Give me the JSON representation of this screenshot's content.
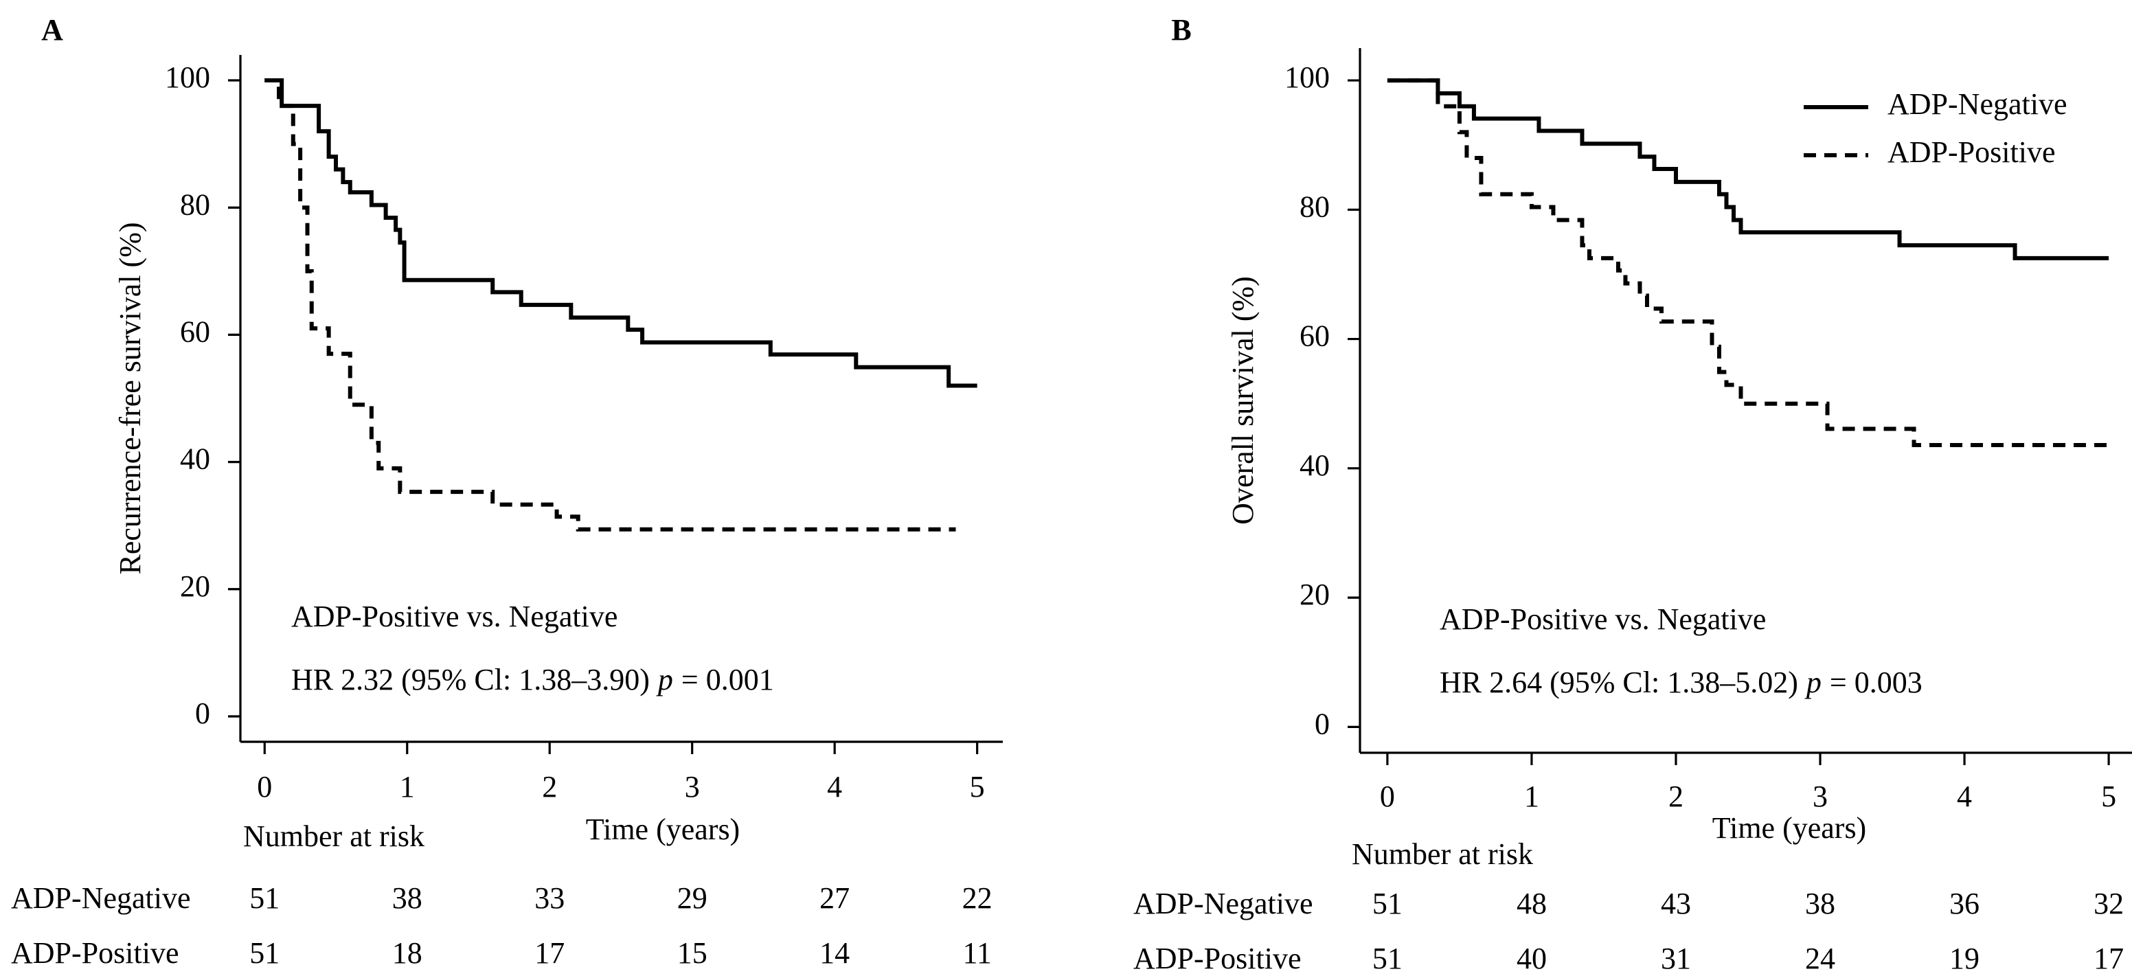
{
  "chart_data": [
    {
      "type": "line",
      "panel": "A",
      "step": "post",
      "xlabel": "Time (years)",
      "ylabel": "Recurrence-free survival (%)",
      "xlim": [
        -0.17,
        5.18
      ],
      "ylim": [
        -4,
        104
      ],
      "xticks": [
        0,
        1,
        2,
        3,
        4,
        5
      ],
      "yticks": [
        0,
        20,
        40,
        60,
        80,
        100
      ],
      "series": [
        {
          "color": "#000000",
          "linestyle": "solid",
          "x": [
            0,
            0.12,
            0.38,
            0.45,
            0.5,
            0.55,
            0.6,
            0.75,
            0.85,
            0.92,
            0.95,
            0.98,
            1.6,
            1.8,
            2.15,
            2.55,
            2.65,
            3.55,
            4.15,
            4.8,
            5.0
          ],
          "values": [
            100,
            96,
            92,
            88,
            86,
            84,
            82.4,
            80.4,
            78.4,
            76.5,
            74.5,
            68.6,
            66.7,
            64.7,
            62.7,
            60.8,
            58.8,
            56.9,
            54.9,
            52.0,
            52.0
          ]
        },
        {
          "color": "#000000",
          "linestyle": "dashed",
          "x": [
            0,
            0.1,
            0.2,
            0.25,
            0.3,
            0.33,
            0.45,
            0.6,
            0.75,
            0.8,
            0.95,
            1.6,
            2.05,
            2.2,
            4.85
          ],
          "values": [
            100,
            96,
            90,
            80,
            70,
            61,
            57,
            49,
            43,
            39,
            35.3,
            33.3,
            31.4,
            29.4,
            29.4
          ]
        }
      ],
      "annotations": [
        {
          "parts": [
            "ADP-Positive vs. Negative"
          ]
        },
        {
          "parts": [
            "HR 2.32 (95% Cl: 1.38–3.90)",
            "p",
            "= 0.001"
          ]
        }
      ],
      "risk_table": {
        "title": "Number at risk",
        "rows": [
          {
            "label": "ADP-Negative",
            "values": [
              51,
              38,
              33,
              29,
              27,
              22
            ]
          },
          {
            "label": "ADP-Positive",
            "values": [
              51,
              18,
              17,
              15,
              14,
              11
            ]
          }
        ]
      }
    },
    {
      "type": "line",
      "panel": "B",
      "step": "post",
      "xlabel": "Time (years)",
      "ylabel": "Overall survival (%)",
      "xlim": [
        -0.19,
        5.19
      ],
      "ylim": [
        -4,
        105
      ],
      "xticks": [
        0,
        1,
        2,
        3,
        4,
        5
      ],
      "yticks": [
        0,
        20,
        40,
        60,
        80,
        100
      ],
      "legend": "top-right",
      "series": [
        {
          "name": "ADP-Negative",
          "color": "#000000",
          "linestyle": "solid",
          "x": [
            0,
            0.35,
            0.5,
            0.6,
            1.05,
            1.35,
            1.75,
            1.85,
            2.0,
            2.3,
            2.35,
            2.4,
            2.45,
            3.55,
            4.35,
            5.0
          ],
          "values": [
            100,
            98,
            96,
            94.1,
            92.2,
            90.2,
            88.2,
            86.3,
            84.3,
            82.4,
            80.4,
            78.4,
            76.5,
            74.5,
            72.5,
            72.5
          ]
        },
        {
          "name": "ADP-Positive",
          "color": "#000000",
          "linestyle": "dashed",
          "x": [
            0,
            0.35,
            0.5,
            0.55,
            0.65,
            1.0,
            1.15,
            1.35,
            1.4,
            1.6,
            1.65,
            1.75,
            1.8,
            1.9,
            2.25,
            2.3,
            2.35,
            2.45,
            3.05,
            3.65,
            5.0
          ],
          "values": [
            100,
            96,
            92,
            88,
            82.4,
            80.4,
            78.4,
            74.5,
            72.5,
            70.6,
            68.6,
            66.7,
            64.7,
            62.7,
            58.8,
            54.9,
            52.9,
            50,
            46.1,
            43.6,
            43.6
          ]
        }
      ],
      "annotations": [
        {
          "parts": [
            "ADP-Positive vs. Negative"
          ]
        },
        {
          "parts": [
            "HR 2.64 (95% Cl: 1.38–5.02)",
            "p",
            "= 0.003"
          ]
        }
      ],
      "risk_table": {
        "title": "Number at risk",
        "rows": [
          {
            "label": "ADP-Negative",
            "values": [
              51,
              48,
              43,
              38,
              36,
              32
            ]
          },
          {
            "label": "ADP-Positive",
            "values": [
              51,
              40,
              31,
              24,
              19,
              17
            ]
          }
        ]
      }
    }
  ]
}
